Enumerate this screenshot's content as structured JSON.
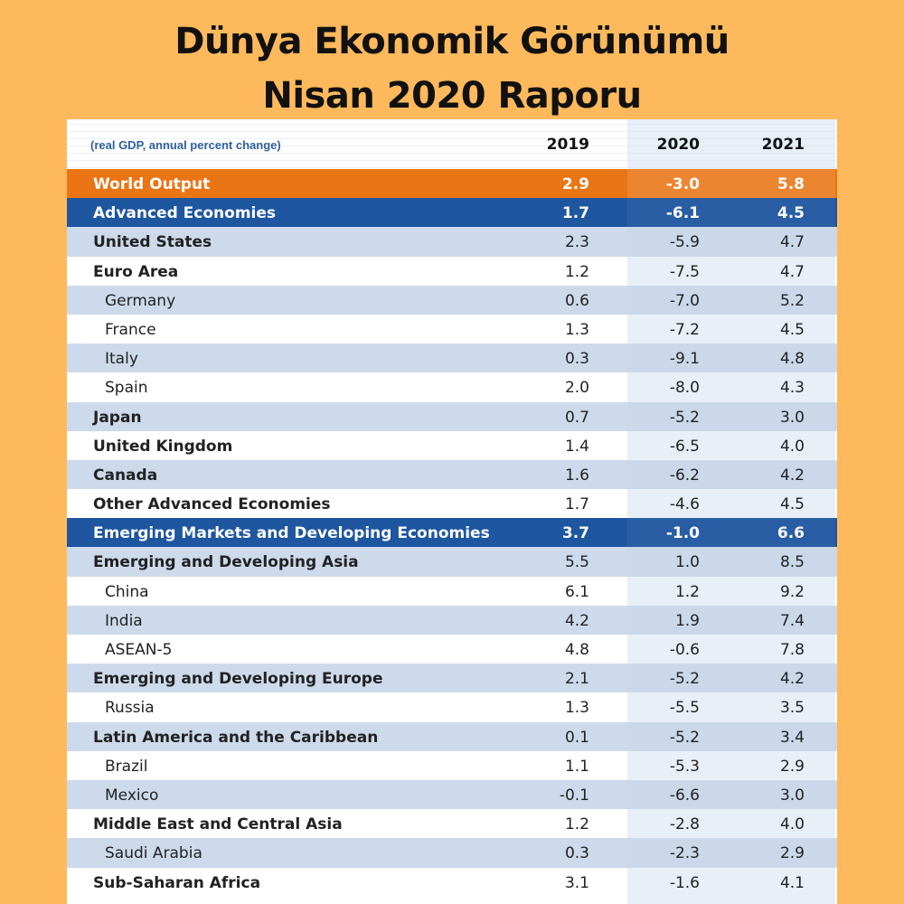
{
  "title": {
    "line1": "Dünya Ekonomik Görünümü",
    "line2": "Nisan 2020 Raporu"
  },
  "table": {
    "note": "(real GDP, annual percent change)",
    "years": [
      "2019",
      "2020",
      "2021"
    ],
    "rows": [
      {
        "name": "World Output",
        "style": "world",
        "v2019": "2.9",
        "v2020": "-3.0",
        "v2021": "5.8"
      },
      {
        "name": "Advanced Economies",
        "style": "blue",
        "v2019": "1.7",
        "v2020": "-6.1",
        "v2021": "4.5"
      },
      {
        "name": "United States",
        "style": "group",
        "v2019": "2.3",
        "v2020": "-5.9",
        "v2021": "4.7"
      },
      {
        "name": "Euro Area",
        "style": "group",
        "v2019": "1.2",
        "v2020": "-7.5",
        "v2021": "4.7"
      },
      {
        "name": "Germany",
        "style": "indent",
        "v2019": "0.6",
        "v2020": "-7.0",
        "v2021": "5.2"
      },
      {
        "name": "France",
        "style": "indent",
        "v2019": "1.3",
        "v2020": "-7.2",
        "v2021": "4.5"
      },
      {
        "name": "Italy",
        "style": "indent",
        "v2019": "0.3",
        "v2020": "-9.1",
        "v2021": "4.8"
      },
      {
        "name": "Spain",
        "style": "indent",
        "v2019": "2.0",
        "v2020": "-8.0",
        "v2021": "4.3"
      },
      {
        "name": "Japan",
        "style": "group",
        "v2019": "0.7",
        "v2020": "-5.2",
        "v2021": "3.0"
      },
      {
        "name": "United Kingdom",
        "style": "group",
        "v2019": "1.4",
        "v2020": "-6.5",
        "v2021": "4.0"
      },
      {
        "name": "Canada",
        "style": "group",
        "v2019": "1.6",
        "v2020": "-6.2",
        "v2021": "4.2"
      },
      {
        "name": "Other Advanced Economies",
        "style": "group",
        "v2019": "1.7",
        "v2020": "-4.6",
        "v2021": "4.5"
      },
      {
        "name": "Emerging Markets and Developing Economies",
        "style": "blue",
        "v2019": "3.7",
        "v2020": "-1.0",
        "v2021": "6.6"
      },
      {
        "name": "Emerging and Developing Asia",
        "style": "group",
        "v2019": "5.5",
        "v2020": "1.0",
        "v2021": "8.5"
      },
      {
        "name": "China",
        "style": "indent",
        "v2019": "6.1",
        "v2020": "1.2",
        "v2021": "9.2"
      },
      {
        "name": "India",
        "style": "indent",
        "v2019": "4.2",
        "v2020": "1.9",
        "v2021": "7.4"
      },
      {
        "name": "ASEAN-5",
        "style": "indent",
        "v2019": "4.8",
        "v2020": "-0.6",
        "v2021": "7.8"
      },
      {
        "name": "Emerging and Developing Europe",
        "style": "group",
        "v2019": "2.1",
        "v2020": "-5.2",
        "v2021": "4.2"
      },
      {
        "name": "Russia",
        "style": "indent",
        "v2019": "1.3",
        "v2020": "-5.5",
        "v2021": "3.5"
      },
      {
        "name": "Latin America and the Caribbean",
        "style": "group",
        "v2019": "0.1",
        "v2020": "-5.2",
        "v2021": "3.4"
      },
      {
        "name": "Brazil",
        "style": "indent",
        "v2019": "1.1",
        "v2020": "-5.3",
        "v2021": "2.9"
      },
      {
        "name": "Mexico",
        "style": "indent",
        "v2019": "-0.1",
        "v2020": "-6.6",
        "v2021": "3.0"
      },
      {
        "name": "Middle East and Central Asia",
        "style": "group",
        "v2019": "1.2",
        "v2020": "-2.8",
        "v2021": "4.0"
      },
      {
        "name": "Saudi Arabia",
        "style": "indent",
        "v2019": "0.3",
        "v2020": "-2.3",
        "v2021": "2.9"
      },
      {
        "name": "Sub-Saharan Africa",
        "style": "group",
        "v2019": "3.1",
        "v2020": "-1.6",
        "v2021": "4.1"
      }
    ]
  },
  "colors": {
    "background": "#FDB95C",
    "world_row": "#EA7514",
    "blue_row": "#1E56A0",
    "band": "#C4D4E8"
  }
}
